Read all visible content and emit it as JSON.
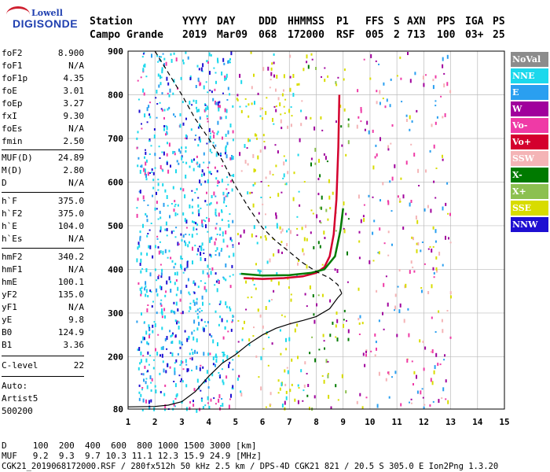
{
  "logo": {
    "line1": "Lowell",
    "line2": "DIGISONDE"
  },
  "header": {
    "labels": [
      "Station",
      "YYYY",
      "DAY",
      "DDD",
      "HHMMSS",
      "P1",
      "FFS",
      "S",
      "AXN",
      "PPS",
      "IGA",
      "PS"
    ],
    "values": [
      "Campo Grande",
      "2019",
      "Mar09",
      "068",
      "172000",
      "RSF",
      "005",
      "2",
      "713",
      "100",
      "03+",
      "25"
    ]
  },
  "params": [
    {
      "k": "foF2",
      "v": "8.900"
    },
    {
      "k": "foF1",
      "v": "N/A"
    },
    {
      "k": "foF1p",
      "v": "4.35"
    },
    {
      "k": "foE",
      "v": "3.01"
    },
    {
      "k": "foEp",
      "v": "3.27"
    },
    {
      "k": "fxI",
      "v": "9.30"
    },
    {
      "k": "foEs",
      "v": "N/A"
    },
    {
      "k": "fmin",
      "v": "2.50"
    },
    {
      "k": "MUF(D)",
      "v": "24.89"
    },
    {
      "k": "M(D)",
      "v": "2.80"
    },
    {
      "k": "D",
      "v": "N/A"
    },
    {
      "k": "h`F",
      "v": "375.0"
    },
    {
      "k": "h`F2",
      "v": "375.0"
    },
    {
      "k": "h`E",
      "v": "104.0"
    },
    {
      "k": "h`Es",
      "v": "N/A"
    },
    {
      "k": "hmF2",
      "v": "340.2"
    },
    {
      "k": "hmF1",
      "v": "N/A"
    },
    {
      "k": "hmE",
      "v": "100.1"
    },
    {
      "k": "yF2",
      "v": "135.0"
    },
    {
      "k": "yF1",
      "v": "N/A"
    },
    {
      "k": "yE",
      "v": "9.8"
    },
    {
      "k": "B0",
      "v": "124.9"
    },
    {
      "k": "B1",
      "v": "3.36"
    },
    {
      "k": "C-level",
      "v": "22"
    }
  ],
  "auto": {
    "line1": "Auto:",
    "line2": "Artist5",
    "line3": "500200"
  },
  "legend": [
    {
      "label": "NoVal",
      "bg": "#8c8c8c",
      "fg": "#ffffff"
    },
    {
      "label": "NNE",
      "bg": "#1cd8ec",
      "fg": "#ffffff"
    },
    {
      "label": "E",
      "bg": "#2a9ff0",
      "fg": "#ffffff"
    },
    {
      "label": "W",
      "bg": "#a0009c",
      "fg": "#ffffff"
    },
    {
      "label": "Vo-",
      "bg": "#ef3aa6",
      "fg": "#ffffff"
    },
    {
      "label": "Vo+",
      "bg": "#d4002e",
      "fg": "#ffffff"
    },
    {
      "label": "SSW",
      "bg": "#f4b4b6",
      "fg": "#ffffff"
    },
    {
      "label": "X-",
      "bg": "#007a00",
      "fg": "#ffffff"
    },
    {
      "label": "X+",
      "bg": "#8cc050",
      "fg": "#ffffff"
    },
    {
      "label": "SSE",
      "bg": "#d8dc00",
      "fg": "#ffffff"
    },
    {
      "label": "NNW",
      "bg": "#1e0fd2",
      "fg": "#ffffff"
    }
  ],
  "chart_data": {
    "type": "scatter",
    "title": "",
    "xlabel": "",
    "ylabel": "",
    "xlim": [
      1,
      15
    ],
    "ylim": [
      80,
      900
    ],
    "x_ticks": [
      "1",
      "2",
      "3",
      "4",
      "5",
      "6",
      "7",
      "8",
      "9",
      "10",
      "11",
      "12",
      "13",
      "14",
      "15"
    ],
    "y_ticks": [
      "80",
      "200",
      "300",
      "400",
      "500",
      "600",
      "700",
      "800",
      "900"
    ],
    "grid": true,
    "series": [
      {
        "label": "O-trace",
        "color": "#d4002e",
        "points": [
          [
            5.3,
            380
          ],
          [
            6,
            378
          ],
          [
            6.8,
            380
          ],
          [
            7.5,
            384
          ],
          [
            8.0,
            392
          ],
          [
            8.3,
            405
          ],
          [
            8.5,
            430
          ],
          [
            8.65,
            480
          ],
          [
            8.75,
            560
          ],
          [
            8.82,
            680
          ],
          [
            8.86,
            800
          ]
        ]
      },
      {
        "label": "X-trace",
        "color": "#007a00",
        "points": [
          [
            5.2,
            390
          ],
          [
            6,
            386
          ],
          [
            7,
            387
          ],
          [
            7.8,
            392
          ],
          [
            8.3,
            400
          ],
          [
            8.7,
            430
          ],
          [
            8.9,
            490
          ],
          [
            9.0,
            540
          ]
        ]
      },
      {
        "label": "true-height",
        "color": "#000000",
        "points": [
          [
            1,
            85
          ],
          [
            2,
            86
          ],
          [
            2.5,
            89
          ],
          [
            3,
            97
          ],
          [
            3.5,
            120
          ],
          [
            4,
            155
          ],
          [
            4.5,
            185
          ],
          [
            5,
            205
          ],
          [
            5.5,
            230
          ],
          [
            6,
            250
          ],
          [
            6.5,
            265
          ],
          [
            7,
            275
          ],
          [
            7.5,
            283
          ],
          [
            8,
            292
          ],
          [
            8.5,
            310
          ],
          [
            8.8,
            335
          ],
          [
            8.95,
            345
          ]
        ]
      },
      {
        "label": "model-profile",
        "color": "#000000",
        "points": [
          [
            2,
            900
          ],
          [
            2.4,
            860
          ],
          [
            3,
            800
          ],
          [
            3.5,
            745
          ],
          [
            4,
            700
          ],
          [
            4.5,
            650
          ],
          [
            5,
            590
          ],
          [
            5.5,
            540
          ],
          [
            6,
            495
          ],
          [
            6.5,
            465
          ],
          [
            7,
            440
          ],
          [
            7.5,
            415
          ],
          [
            8,
            395
          ],
          [
            8.5,
            380
          ],
          [
            8.8,
            365
          ],
          [
            8.95,
            345
          ]
        ]
      }
    ],
    "legend_position": "right"
  },
  "bottom": {
    "line1": "D     100  200  400  600  800 1000 1500 3000 [km]",
    "line2": "MUF   9.2  9.3  9.7 10.3 11.1 12.3 15.9 24.9 [MHz]",
    "line3": "CGK21_2019068172000.RSF / 280fx512h 50 kHz 2.5 km / DPS-4D CGK21 821 / 20.5 S 305.0 E Ion2Png 1.3.20"
  }
}
